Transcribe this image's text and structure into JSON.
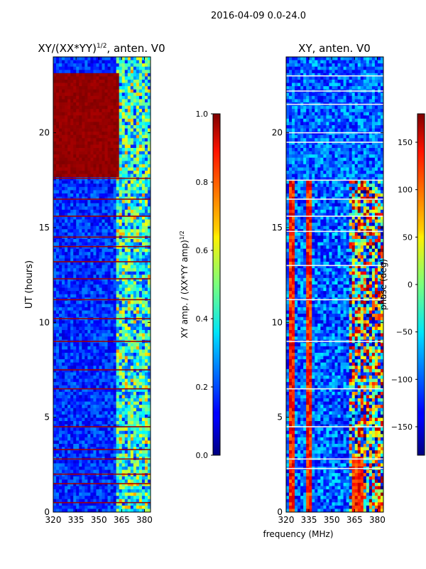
{
  "figure": {
    "suptitle": "2016-04-09 0.0-24.0",
    "shared_xlabel": "frequency (MHz)"
  },
  "chart_data": [
    {
      "type": "heatmap",
      "title_base": "XY/(XX*YY)",
      "title_sup": "1/2",
      "title_tail": ", anten. V0",
      "xlabel": "",
      "ylabel": "UT (hours)",
      "xlim": [
        320,
        384
      ],
      "ylim": [
        0,
        24
      ],
      "xticks": [
        320,
        335,
        350,
        365,
        380
      ],
      "yticks": [
        0,
        5,
        10,
        15,
        20
      ],
      "colormap": "jet",
      "colorbar": {
        "label_base": "XY amp. / (XX*YY amp)",
        "label_sup": "1/2",
        "range": [
          0.0,
          1.0
        ],
        "ticks": [
          "0.0",
          "0.2",
          "0.4",
          "0.6",
          "0.8",
          "1.0"
        ]
      },
      "saturated_band_hours": [
        17.6,
        23.2
      ],
      "flagged_rows_hours": [
        0.5,
        1.5,
        2.0,
        2.8,
        3.3,
        4.5,
        6.5,
        7.5,
        9.0,
        10.2,
        11.2,
        12.3,
        13.2,
        14.0,
        14.5,
        15.6,
        16.5,
        17.6
      ]
    },
    {
      "type": "heatmap",
      "title": "XY, anten. V0",
      "xlabel": "",
      "ylabel": "",
      "xlim": [
        320,
        384
      ],
      "ylim": [
        0,
        24
      ],
      "xticks": [
        320,
        335,
        350,
        365,
        380
      ],
      "yticks": [
        0,
        5,
        10,
        15,
        20
      ],
      "colormap": "jet",
      "colorbar": {
        "label": "phase (deg)",
        "range": [
          -180,
          180
        ],
        "ticks": [
          "150",
          "100",
          "50",
          "0",
          "−50",
          "−100",
          "−150"
        ]
      },
      "flagged_rows_hours": [
        2.3,
        2.8,
        4.5,
        6.5,
        9.0,
        11.2,
        13.0,
        14.8,
        15.6,
        16.5,
        17.5,
        19.5,
        20.0,
        21.5,
        22.2,
        23.0
      ]
    }
  ]
}
